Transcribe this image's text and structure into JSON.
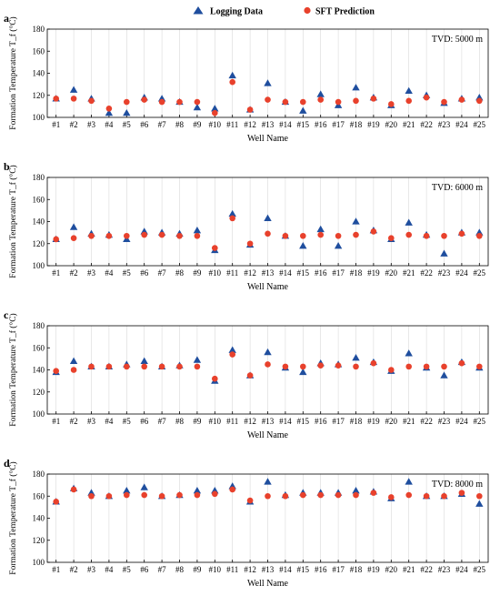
{
  "legend": {
    "logging_label": "Logging Data",
    "sft_label": "SFT Prediction"
  },
  "colors": {
    "logging": "#1f4e9e",
    "sft": "#e8412c",
    "axis": "#000000",
    "gridline": "#d9d9d9"
  },
  "chart_data": [
    {
      "type": "scatter",
      "panel_label": "a",
      "annotation": "TVD: 5000 m",
      "xlabel": "Well Name",
      "ylabel": "Formation Temperature T_f (°C)",
      "ylim": [
        100,
        180
      ],
      "yticks": [
        100,
        120,
        140,
        160,
        180
      ],
      "grid": "vertical",
      "categories": [
        "#1",
        "#2",
        "#3",
        "#4",
        "#5",
        "#6",
        "#7",
        "#8",
        "#9",
        "#10",
        "#11",
        "#12",
        "#13",
        "#14",
        "#15",
        "#16",
        "#17",
        "#18",
        "#19",
        "#20",
        "#21",
        "#22",
        "#23",
        "#24",
        "#25"
      ],
      "series": [
        {
          "name": "Logging Data",
          "marker": "triangle",
          "values": [
            117,
            125,
            117,
            104,
            104,
            118,
            117,
            114,
            109,
            108,
            138,
            107,
            131,
            114,
            106,
            121,
            111,
            127,
            118,
            111,
            124,
            120,
            113,
            117,
            118
          ]
        },
        {
          "name": "SFT Prediction",
          "marker": "circle",
          "values": [
            117,
            117,
            115,
            108,
            114,
            116,
            114,
            114,
            114,
            104,
            132,
            107,
            116,
            114,
            114,
            116,
            114,
            115,
            117,
            112,
            115,
            118,
            114,
            116,
            115
          ]
        }
      ]
    },
    {
      "type": "scatter",
      "panel_label": "b",
      "annotation": "TVD: 6000 m",
      "xlabel": "Well Name",
      "ylabel": "Formation Temperature T_f (°C)",
      "ylim": [
        100,
        180
      ],
      "yticks": [
        100,
        120,
        140,
        160,
        180
      ],
      "grid": "vertical",
      "categories": [
        "#1",
        "#2",
        "#3",
        "#4",
        "#5",
        "#6",
        "#7",
        "#8",
        "#9",
        "#10",
        "#11",
        "#12",
        "#13",
        "#14",
        "#15",
        "#16",
        "#17",
        "#18",
        "#19",
        "#20",
        "#21",
        "#22",
        "#23",
        "#24",
        "#25"
      ],
      "series": [
        {
          "name": "Logging Data",
          "marker": "triangle",
          "values": [
            124,
            135,
            129,
            128,
            124,
            131,
            130,
            129,
            132,
            114,
            147,
            119,
            143,
            127,
            118,
            133,
            118,
            140,
            132,
            124,
            139,
            128,
            111,
            130,
            130
          ]
        },
        {
          "name": "SFT Prediction",
          "marker": "circle",
          "values": [
            124,
            125,
            127,
            127,
            127,
            128,
            128,
            127,
            127,
            116,
            143,
            120,
            129,
            127,
            127,
            128,
            127,
            128,
            131,
            125,
            128,
            127,
            127,
            129,
            127
          ]
        }
      ]
    },
    {
      "type": "scatter",
      "panel_label": "c",
      "annotation": "",
      "xlabel": "Well Name",
      "ylabel": "Formation Temperature T_f (°C)",
      "ylim": [
        100,
        180
      ],
      "yticks": [
        100,
        120,
        140,
        160,
        180
      ],
      "grid": "vertical",
      "categories": [
        "#1",
        "#2",
        "#3",
        "#4",
        "#5",
        "#6",
        "#7",
        "#8",
        "#9",
        "#10",
        "#11",
        "#12",
        "#13",
        "#14",
        "#15",
        "#16",
        "#17",
        "#18",
        "#19",
        "#20",
        "#21",
        "#22",
        "#23",
        "#24",
        "#25"
      ],
      "series": [
        {
          "name": "Logging Data",
          "marker": "triangle",
          "values": [
            138,
            148,
            143,
            143,
            145,
            148,
            143,
            144,
            149,
            130,
            158,
            135,
            156,
            142,
            138,
            146,
            145,
            151,
            147,
            139,
            155,
            142,
            135,
            147,
            142
          ]
        },
        {
          "name": "SFT Prediction",
          "marker": "circle",
          "values": [
            139,
            140,
            143,
            143,
            143,
            143,
            143,
            143,
            143,
            132,
            154,
            135,
            145,
            143,
            143,
            144,
            144,
            143,
            146,
            140,
            143,
            143,
            143,
            146,
            143
          ]
        }
      ]
    },
    {
      "type": "scatter",
      "panel_label": "d",
      "annotation": "TVD: 8000 m",
      "xlabel": "Well Name",
      "ylabel": "Formation Temperature T_f (°C)",
      "ylim": [
        100,
        180
      ],
      "yticks": [
        100,
        120,
        140,
        160,
        180
      ],
      "grid": "vertical",
      "categories": [
        "#1",
        "#2",
        "#3",
        "#4",
        "#5",
        "#6",
        "#7",
        "#8",
        "#9",
        "#10",
        "#11",
        "#12",
        "#13",
        "#14",
        "#15",
        "#16",
        "#17",
        "#18",
        "#19",
        "#20",
        "#21",
        "#22",
        "#23",
        "#24",
        "#25"
      ],
      "series": [
        {
          "name": "Logging Data",
          "marker": "triangle",
          "values": [
            155,
            167,
            163,
            160,
            165,
            168,
            160,
            161,
            165,
            165,
            169,
            155,
            173,
            161,
            163,
            163,
            163,
            165,
            164,
            158,
            173,
            160,
            160,
            162,
            153
          ]
        },
        {
          "name": "SFT Prediction",
          "marker": "circle",
          "values": [
            155,
            166,
            160,
            160,
            161,
            161,
            160,
            161,
            161,
            162,
            166,
            156,
            160,
            160,
            161,
            161,
            161,
            161,
            163,
            159,
            161,
            160,
            160,
            163,
            160
          ]
        }
      ]
    }
  ]
}
